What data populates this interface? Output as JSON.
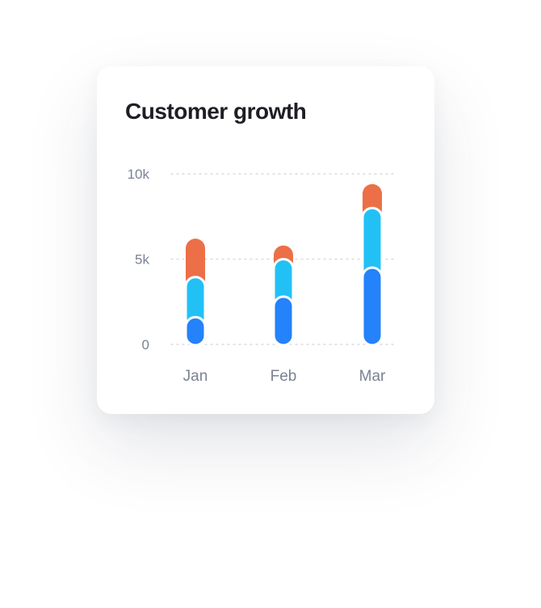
{
  "chart_data": {
    "type": "bar",
    "stacked": true,
    "title": "Customer growth",
    "categories": [
      "Jan",
      "Feb",
      "Mar"
    ],
    "series": [
      {
        "values": [
          1600,
          2800,
          4500
        ],
        "color": "#2482fb"
      },
      {
        "values": [
          2350,
          2200,
          3500
        ],
        "color": "#22c1f5"
      },
      {
        "values": [
          2250,
          800,
          1400
        ],
        "color": "#ec6f47"
      }
    ],
    "yticks": [
      0,
      5000,
      10000
    ],
    "ytick_labels": [
      "0",
      "5k",
      "10k"
    ],
    "ylim": [
      0,
      10000
    ],
    "grid": true,
    "grid_style": "dotted"
  }
}
